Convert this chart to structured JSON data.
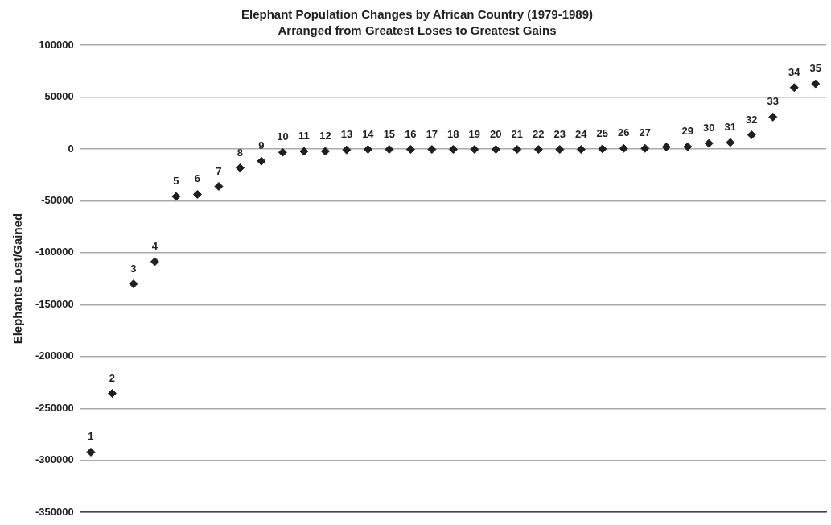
{
  "chart_data": {
    "type": "scatter",
    "title": "Elephant Population Changes by African Country (1979-1989)",
    "subtitle": "Arranged from Greatest Loses to Greatest Gains",
    "ylabel": "Elephants Lost/Gained",
    "categories": [
      "1",
      "2",
      "3",
      "4",
      "5",
      "6",
      "7",
      "8",
      "9",
      "10",
      "11",
      "12",
      "13",
      "14",
      "15",
      "16",
      "17",
      "18",
      "19",
      "20",
      "21",
      "22",
      "23",
      "24",
      "25",
      "26",
      "27",
      null,
      "29",
      "30",
      "31",
      "32",
      "33",
      "34",
      "35"
    ],
    "values": [
      -292000,
      -235500,
      -130000,
      -108600,
      -45900,
      -43800,
      -36100,
      -18300,
      -11800,
      -3300,
      -2300,
      -2300,
      -1000,
      -500,
      -500,
      -500,
      -500,
      -500,
      -500,
      -500,
      -500,
      -500,
      -500,
      -500,
      0,
      500,
      500,
      1900,
      2100,
      5400,
      6200,
      13500,
      30700,
      59100,
      62700
    ],
    "color": "#1f1f1f",
    "marker": "diamond",
    "ylim": [
      -350000,
      100000
    ],
    "yticks": [
      -350000,
      -300000,
      -250000,
      -200000,
      -150000,
      -100000,
      -50000,
      0,
      50000,
      100000
    ],
    "tick_labels": "y",
    "grid": "y",
    "legend": false
  }
}
